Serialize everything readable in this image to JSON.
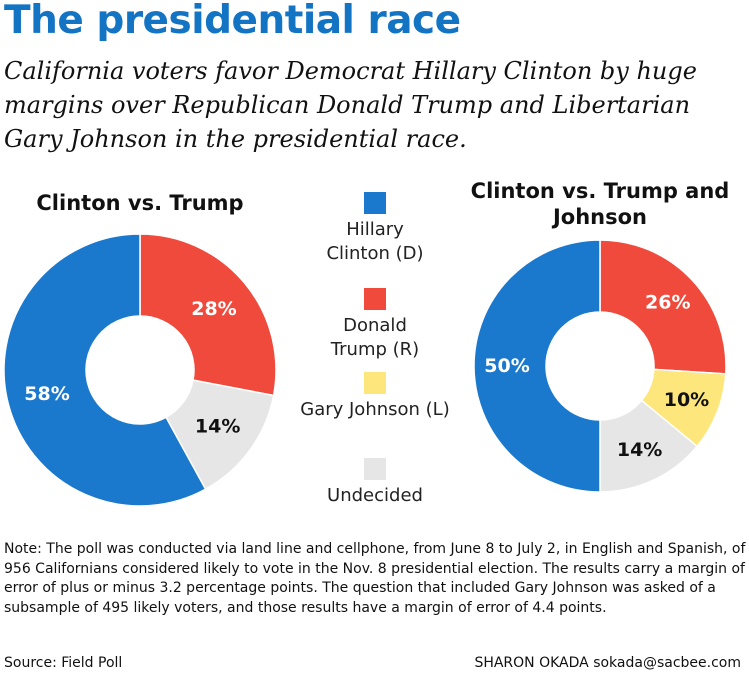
{
  "header": {
    "title": "The presidential race",
    "subtitle": "California voters favor Democrat Hillary Clinton by huge margins over Republican Donald Trump and Libertarian Gary Johnson in the presidential race."
  },
  "legend": [
    {
      "label": "Hillary Clinton (D)",
      "color": "#1a78cd"
    },
    {
      "label": "Donald Trump (R)",
      "color": "#f04a3c"
    },
    {
      "label": "Gary Johnson (L)",
      "color": "#fde77c"
    },
    {
      "label": "Undecided",
      "color": "#e6e6e6"
    }
  ],
  "chart_data": [
    {
      "type": "pie",
      "title": "Clinton vs. Trump",
      "categories": [
        "Hillary Clinton (D)",
        "Donald Trump (R)",
        "Undecided"
      ],
      "values": [
        58,
        28,
        14
      ],
      "labels": [
        "58%",
        "28%",
        "14%"
      ],
      "colors": [
        "#1a78cd",
        "#f04a3c",
        "#e6e6e6"
      ],
      "label_colors": [
        "#ffffff",
        "#ffffff",
        "#111111"
      ]
    },
    {
      "type": "pie",
      "title": "Clinton vs. Trump and Johnson",
      "categories": [
        "Hillary Clinton (D)",
        "Donald Trump (R)",
        "Gary Johnson (L)",
        "Undecided"
      ],
      "values": [
        50,
        26,
        10,
        14
      ],
      "labels": [
        "50%",
        "26%",
        "10%",
        "14%"
      ],
      "colors": [
        "#1a78cd",
        "#f04a3c",
        "#fde77c",
        "#e6e6e6"
      ],
      "label_colors": [
        "#ffffff",
        "#ffffff",
        "#111111",
        "#111111"
      ]
    }
  ],
  "footer": {
    "note": "Note: The poll was conducted via land line and cellphone, from June 8 to July 2, in English and Spanish, of 956 Californians considered likely to vote in the Nov. 8 presidential election. The results carry a margin of error of plus or minus 3.2 percentage points. The question that included Gary Johnson was asked of a subsample of 495 likely voters, and those results have a margin of error of 4.4 points.",
    "source": "Source: Field Poll",
    "credit": "SHARON OKADA sokada@sacbee.com"
  }
}
